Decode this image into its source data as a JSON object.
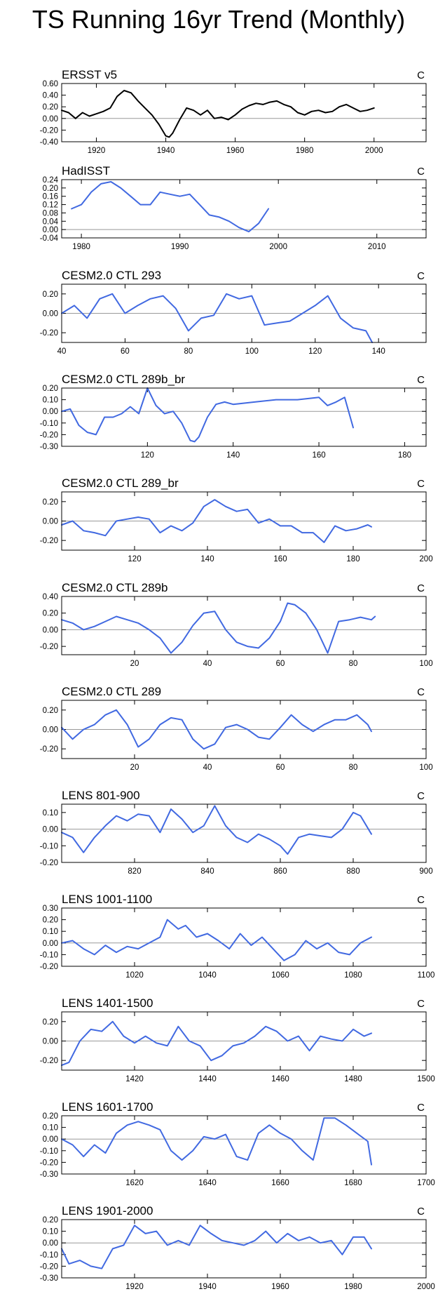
{
  "title": "TS Running 16yr Trend (Monthly)",
  "chart_data": [
    {
      "type": "line",
      "title": "ERSST v5",
      "unit": "C",
      "color": "#000000",
      "xlim": [
        1910,
        2015
      ],
      "xticks": [
        1920,
        1940,
        1960,
        1980,
        2000
      ],
      "ylim": [
        -0.4,
        0.6
      ],
      "yticks": [
        -0.4,
        -0.2,
        0.0,
        0.2,
        0.4,
        0.6
      ],
      "ytick_labels": [
        "-0.40",
        "-0.20",
        "0.00",
        "0.20",
        "0.40",
        "0.60"
      ],
      "x": [
        1910,
        1912,
        1914,
        1916,
        1918,
        1920,
        1922,
        1924,
        1926,
        1928,
        1930,
        1932,
        1934,
        1936,
        1938,
        1940,
        1941,
        1942,
        1944,
        1946,
        1948,
        1950,
        1952,
        1954,
        1956,
        1958,
        1960,
        1962,
        1964,
        1966,
        1968,
        1970,
        1972,
        1974,
        1976,
        1978,
        1980,
        1982,
        1984,
        1986,
        1988,
        1990,
        1992,
        1994,
        1996,
        1998,
        2000
      ],
      "y": [
        0.14,
        0.1,
        0.0,
        0.1,
        0.04,
        0.08,
        0.12,
        0.18,
        0.38,
        0.48,
        0.44,
        0.3,
        0.18,
        0.06,
        -0.1,
        -0.3,
        -0.32,
        -0.25,
        -0.02,
        0.18,
        0.14,
        0.06,
        0.14,
        0.0,
        0.02,
        -0.02,
        0.06,
        0.16,
        0.22,
        0.26,
        0.24,
        0.28,
        0.3,
        0.24,
        0.2,
        0.1,
        0.06,
        0.12,
        0.14,
        0.1,
        0.12,
        0.2,
        0.24,
        0.18,
        0.12,
        0.14,
        0.18
      ]
    },
    {
      "type": "line",
      "title": "HadISST",
      "unit": "C",
      "color": "#4169e1",
      "xlim": [
        1978,
        2015
      ],
      "xticks": [
        1980,
        1990,
        2000,
        2010
      ],
      "ylim": [
        -0.04,
        0.24
      ],
      "yticks": [
        -0.04,
        0.0,
        0.04,
        0.08,
        0.12,
        0.16,
        0.2,
        0.24
      ],
      "ytick_labels": [
        "-0.04",
        "0.00",
        "0.04",
        "0.08",
        "0.12",
        "0.16",
        "0.20",
        "0.24"
      ],
      "x": [
        1979,
        1980,
        1981,
        1982,
        1983,
        1984,
        1985,
        1986,
        1987,
        1988,
        1989,
        1990,
        1991,
        1992,
        1993,
        1994,
        1995,
        1996,
        1997,
        1998,
        1999
      ],
      "y": [
        0.1,
        0.12,
        0.18,
        0.22,
        0.23,
        0.2,
        0.16,
        0.12,
        0.12,
        0.18,
        0.17,
        0.16,
        0.17,
        0.12,
        0.07,
        0.06,
        0.04,
        0.01,
        -0.01,
        0.03,
        0.1
      ]
    },
    {
      "type": "line",
      "title": "CESM2.0 CTL 293",
      "unit": "C",
      "color": "#4169e1",
      "xlim": [
        40,
        155
      ],
      "xticks": [
        40,
        60,
        80,
        100,
        120,
        140
      ],
      "ylim": [
        -0.3,
        0.3
      ],
      "yticks": [
        -0.2,
        0.0,
        0.2
      ],
      "ytick_labels": [
        "-0.20",
        "0.00",
        "0.20"
      ],
      "x": [
        40,
        44,
        48,
        52,
        56,
        60,
        64,
        68,
        72,
        76,
        80,
        84,
        88,
        92,
        96,
        100,
        104,
        108,
        112,
        116,
        120,
        124,
        128,
        132,
        136,
        138
      ],
      "y": [
        0.0,
        0.08,
        -0.05,
        0.15,
        0.2,
        0.0,
        0.08,
        0.15,
        0.18,
        0.05,
        -0.18,
        -0.05,
        -0.02,
        0.2,
        0.15,
        0.18,
        -0.12,
        -0.1,
        -0.08,
        0.0,
        0.08,
        0.18,
        -0.05,
        -0.15,
        -0.18,
        -0.3
      ]
    },
    {
      "type": "line",
      "title": "CESM2.0 CTL 289b_br",
      "unit": "C",
      "color": "#4169e1",
      "xlim": [
        100,
        185
      ],
      "xticks": [
        120,
        140,
        160,
        180
      ],
      "ylim": [
        -0.3,
        0.2
      ],
      "yticks": [
        -0.3,
        -0.2,
        -0.1,
        0.0,
        0.1,
        0.2
      ],
      "ytick_labels": [
        "-0.30",
        "-0.20",
        "-0.10",
        "0.00",
        "0.10",
        "0.20"
      ],
      "x": [
        100,
        102,
        104,
        106,
        108,
        110,
        112,
        114,
        116,
        118,
        120,
        122,
        124,
        126,
        128,
        130,
        131,
        132,
        134,
        136,
        138,
        140,
        145,
        150,
        155,
        160,
        162,
        164,
        166,
        168
      ],
      "y": [
        0.0,
        0.02,
        -0.12,
        -0.18,
        -0.2,
        -0.05,
        -0.05,
        -0.02,
        0.04,
        -0.02,
        0.2,
        0.05,
        -0.02,
        0.0,
        -0.1,
        -0.25,
        -0.26,
        -0.22,
        -0.05,
        0.06,
        0.08,
        0.06,
        0.08,
        0.1,
        0.1,
        0.12,
        0.05,
        0.08,
        0.12,
        -0.14
      ]
    },
    {
      "type": "line",
      "title": "CESM2.0 CTL 289_br",
      "unit": "C",
      "color": "#4169e1",
      "xlim": [
        100,
        200
      ],
      "xticks": [
        120,
        140,
        160,
        180,
        200
      ],
      "ylim": [
        -0.3,
        0.3
      ],
      "yticks": [
        -0.2,
        0.0,
        0.2
      ],
      "ytick_labels": [
        "-0.20",
        "0.00",
        "0.20"
      ],
      "x": [
        100,
        103,
        106,
        109,
        112,
        115,
        118,
        121,
        124,
        127,
        130,
        133,
        136,
        139,
        142,
        145,
        148,
        151,
        154,
        157,
        160,
        163,
        166,
        169,
        172,
        175,
        178,
        181,
        184,
        185
      ],
      "y": [
        -0.04,
        0.0,
        -0.1,
        -0.12,
        -0.15,
        0.0,
        0.02,
        0.04,
        0.02,
        -0.12,
        -0.05,
        -0.1,
        -0.02,
        0.15,
        0.22,
        0.15,
        0.1,
        0.12,
        -0.02,
        0.02,
        -0.05,
        -0.05,
        -0.12,
        -0.12,
        -0.22,
        -0.05,
        -0.1,
        -0.08,
        -0.04,
        -0.06
      ]
    },
    {
      "type": "line",
      "title": "CESM2.0 CTL 289b",
      "unit": "C",
      "color": "#4169e1",
      "xlim": [
        0,
        100
      ],
      "xticks": [
        20,
        40,
        60,
        80,
        100
      ],
      "ylim": [
        -0.3,
        0.4
      ],
      "yticks": [
        -0.2,
        0.0,
        0.2,
        0.4
      ],
      "ytick_labels": [
        "-0.20",
        "0.00",
        "0.20",
        "0.40"
      ],
      "x": [
        0,
        3,
        6,
        9,
        12,
        15,
        18,
        21,
        24,
        27,
        30,
        33,
        36,
        39,
        42,
        45,
        48,
        51,
        54,
        57,
        60,
        62,
        64,
        67,
        70,
        73,
        76,
        79,
        82,
        85,
        86
      ],
      "y": [
        0.12,
        0.08,
        0.0,
        0.04,
        0.1,
        0.16,
        0.12,
        0.08,
        0.0,
        -0.1,
        -0.28,
        -0.15,
        0.05,
        0.2,
        0.22,
        0.0,
        -0.15,
        -0.2,
        -0.22,
        -0.1,
        0.1,
        0.32,
        0.3,
        0.2,
        0.0,
        -0.28,
        0.1,
        0.12,
        0.15,
        0.12,
        0.16
      ]
    },
    {
      "type": "line",
      "title": "CESM2.0 CTL 289",
      "unit": "C",
      "color": "#4169e1",
      "xlim": [
        0,
        100
      ],
      "xticks": [
        20,
        40,
        60,
        80,
        100
      ],
      "ylim": [
        -0.3,
        0.3
      ],
      "yticks": [
        -0.2,
        0.0,
        0.2
      ],
      "ytick_labels": [
        "-0.20",
        "0.00",
        "0.20"
      ],
      "x": [
        0,
        3,
        6,
        9,
        12,
        15,
        18,
        21,
        24,
        27,
        30,
        33,
        36,
        39,
        42,
        45,
        48,
        51,
        54,
        57,
        60,
        63,
        66,
        69,
        72,
        75,
        78,
        81,
        84,
        85
      ],
      "y": [
        0.02,
        -0.1,
        0.0,
        0.05,
        0.15,
        0.2,
        0.05,
        -0.18,
        -0.1,
        0.05,
        0.12,
        0.1,
        -0.1,
        -0.2,
        -0.15,
        0.02,
        0.05,
        0.0,
        -0.08,
        -0.1,
        0.02,
        0.15,
        0.05,
        -0.02,
        0.05,
        0.1,
        0.1,
        0.15,
        0.05,
        -0.02
      ]
    },
    {
      "type": "line",
      "title": "LENS 801-900",
      "unit": "C",
      "color": "#4169e1",
      "xlim": [
        800,
        900
      ],
      "xticks": [
        820,
        840,
        860,
        880,
        900
      ],
      "ylim": [
        -0.2,
        0.15
      ],
      "yticks": [
        -0.2,
        -0.1,
        0.0,
        0.1
      ],
      "ytick_labels": [
        "-0.20",
        "-0.10",
        "0.00",
        "0.10"
      ],
      "x": [
        800,
        803,
        806,
        809,
        812,
        815,
        818,
        821,
        824,
        827,
        830,
        833,
        836,
        839,
        842,
        845,
        848,
        851,
        854,
        857,
        860,
        862,
        865,
        868,
        871,
        874,
        877,
        880,
        882,
        885
      ],
      "y": [
        -0.02,
        -0.05,
        -0.14,
        -0.05,
        0.02,
        0.08,
        0.05,
        0.09,
        0.08,
        -0.02,
        0.12,
        0.06,
        -0.02,
        0.02,
        0.14,
        0.02,
        -0.05,
        -0.08,
        -0.03,
        -0.06,
        -0.1,
        -0.15,
        -0.05,
        -0.03,
        -0.04,
        -0.05,
        0.0,
        0.1,
        0.08,
        -0.03
      ]
    },
    {
      "type": "line",
      "title": "LENS 1001-1100",
      "unit": "C",
      "color": "#4169e1",
      "xlim": [
        1000,
        1100
      ],
      "xticks": [
        1020,
        1040,
        1060,
        1080,
        1100
      ],
      "ylim": [
        -0.2,
        0.3
      ],
      "yticks": [
        -0.2,
        -0.1,
        0.0,
        0.1,
        0.2,
        0.3
      ],
      "ytick_labels": [
        "-0.20",
        "-0.10",
        "0.00",
        "0.10",
        "0.20",
        "0.30"
      ],
      "x": [
        1000,
        1003,
        1006,
        1009,
        1012,
        1015,
        1018,
        1021,
        1024,
        1027,
        1029,
        1032,
        1034,
        1037,
        1040,
        1043,
        1046,
        1049,
        1052,
        1055,
        1058,
        1061,
        1064,
        1067,
        1070,
        1073,
        1076,
        1079,
        1082,
        1085
      ],
      "y": [
        0.0,
        0.02,
        -0.05,
        -0.1,
        -0.02,
        -0.08,
        -0.03,
        -0.05,
        0.0,
        0.05,
        0.2,
        0.12,
        0.15,
        0.05,
        0.08,
        0.02,
        -0.05,
        0.08,
        -0.02,
        0.05,
        -0.05,
        -0.15,
        -0.1,
        0.02,
        -0.05,
        0.0,
        -0.08,
        -0.1,
        0.0,
        0.05
      ]
    },
    {
      "type": "line",
      "title": "LENS 1401-1500",
      "unit": "C",
      "color": "#4169e1",
      "xlim": [
        1400,
        1500
      ],
      "xticks": [
        1420,
        1440,
        1460,
        1480,
        1500
      ],
      "ylim": [
        -0.3,
        0.3
      ],
      "yticks": [
        -0.2,
        0.0,
        0.2
      ],
      "ytick_labels": [
        "-0.20",
        "0.00",
        "0.20"
      ],
      "x": [
        1400,
        1402,
        1405,
        1408,
        1411,
        1414,
        1417,
        1420,
        1423,
        1426,
        1429,
        1432,
        1435,
        1438,
        1441,
        1444,
        1447,
        1450,
        1453,
        1456,
        1459,
        1462,
        1465,
        1468,
        1471,
        1474,
        1477,
        1480,
        1483,
        1485
      ],
      "y": [
        -0.25,
        -0.22,
        0.0,
        0.12,
        0.1,
        0.2,
        0.05,
        -0.02,
        0.05,
        -0.02,
        -0.05,
        0.15,
        0.0,
        -0.05,
        -0.2,
        -0.15,
        -0.05,
        -0.02,
        0.05,
        0.15,
        0.1,
        0.0,
        0.05,
        -0.1,
        0.05,
        0.02,
        0.0,
        0.12,
        0.05,
        0.08
      ]
    },
    {
      "type": "line",
      "title": "LENS 1601-1700",
      "unit": "C",
      "color": "#4169e1",
      "xlim": [
        1600,
        1700
      ],
      "xticks": [
        1620,
        1640,
        1660,
        1680,
        1700
      ],
      "ylim": [
        -0.3,
        0.2
      ],
      "yticks": [
        -0.3,
        -0.2,
        -0.1,
        0.0,
        0.1,
        0.2
      ],
      "ytick_labels": [
        "-0.30",
        "-0.20",
        "-0.10",
        "0.00",
        "0.10",
        "0.20"
      ],
      "x": [
        1600,
        1603,
        1606,
        1609,
        1612,
        1615,
        1618,
        1621,
        1624,
        1627,
        1630,
        1633,
        1636,
        1639,
        1642,
        1645,
        1648,
        1651,
        1654,
        1657,
        1660,
        1663,
        1666,
        1669,
        1672,
        1675,
        1678,
        1681,
        1684,
        1685
      ],
      "y": [
        0.0,
        -0.05,
        -0.15,
        -0.05,
        -0.12,
        0.05,
        0.12,
        0.15,
        0.12,
        0.08,
        -0.1,
        -0.18,
        -0.1,
        0.02,
        0.0,
        0.04,
        -0.15,
        -0.18,
        0.05,
        0.12,
        0.05,
        0.0,
        -0.1,
        -0.18,
        0.18,
        0.18,
        0.12,
        0.05,
        -0.02,
        -0.22
      ]
    },
    {
      "type": "line",
      "title": "LENS 1901-2000",
      "unit": "C",
      "color": "#4169e1",
      "xlim": [
        1900,
        2000
      ],
      "xticks": [
        1920,
        1940,
        1960,
        1980,
        2000
      ],
      "ylim": [
        -0.3,
        0.2
      ],
      "yticks": [
        -0.3,
        -0.2,
        -0.1,
        0.0,
        0.1,
        0.2
      ],
      "ytick_labels": [
        "-0.30",
        "-0.20",
        "-0.10",
        "0.00",
        "0.10",
        "0.20"
      ],
      "x": [
        1900,
        1902,
        1905,
        1908,
        1911,
        1914,
        1917,
        1920,
        1923,
        1926,
        1929,
        1932,
        1935,
        1938,
        1941,
        1944,
        1947,
        1950,
        1953,
        1956,
        1959,
        1962,
        1965,
        1968,
        1971,
        1974,
        1977,
        1980,
        1983,
        1985
      ],
      "y": [
        -0.05,
        -0.18,
        -0.15,
        -0.2,
        -0.22,
        -0.05,
        -0.02,
        0.15,
        0.08,
        0.1,
        -0.02,
        0.02,
        -0.02,
        0.15,
        0.08,
        0.02,
        0.0,
        -0.02,
        0.02,
        0.1,
        0.0,
        0.08,
        0.02,
        0.05,
        0.0,
        0.02,
        -0.1,
        0.05,
        0.05,
        -0.05
      ]
    }
  ]
}
